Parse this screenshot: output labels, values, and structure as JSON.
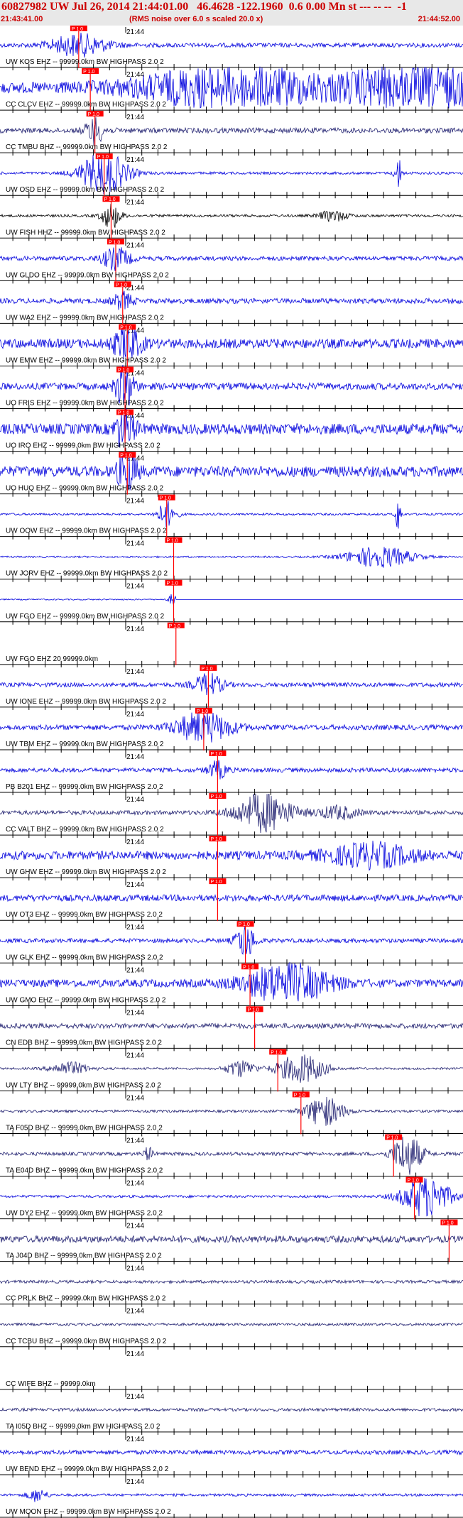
{
  "header": {
    "title": "60827982 UW Jul 26, 2014 21:44:01.00   46.4628 -122.1960  0.6 0.00 Mn st --- -- --  -1",
    "start_time": "21:43:41.00",
    "note": "(RMS noise over 6.0 s scaled 20.0 x)",
    "end_time": "21:44:52.00"
  },
  "tick_time_label": "21:44",
  "pick_label": "P 1.0",
  "colors": {
    "red": "#ff0000",
    "blue": "#0000dd",
    "navy": "#202070",
    "black": "#000000",
    "header_red": "#cc0000"
  },
  "traces": [
    {
      "label": "UW KOS EHZ -- 99999.0km BW  HIGHPASS  2.0  2",
      "color": "blue",
      "pick": 0.17,
      "amp": 0.1,
      "events": [
        [
          0.17,
          0.5,
          0.06
        ]
      ]
    },
    {
      "label": "CC CLCV EHZ -- 99999.0km BW  HIGHPASS  2.0  2",
      "color": "blue",
      "pick": 0.195,
      "amp": 0.25,
      "events": [
        [
          0.5,
          0.9,
          0.2
        ],
        [
          0.9,
          1.0,
          0.15
        ]
      ]
    },
    {
      "label": "CC TMBU BHZ -- 99999.0km BW  HIGHPASS  2.0  2",
      "color": "navy",
      "pick": 0.205,
      "amp": 0.12,
      "events": [
        [
          0.205,
          0.6,
          0.02
        ]
      ]
    },
    {
      "label": "UW OSD EHZ -- 99999.0km BW  HIGHPASS  2.0  2",
      "color": "blue",
      "pick": 0.225,
      "amp": 0.06,
      "events": [
        [
          0.225,
          1.0,
          0.05
        ],
        [
          0.86,
          0.7,
          0.008
        ]
      ]
    },
    {
      "label": "UW FISH HHZ -- 99999.0km BW  HIGHPASS  2.0  2",
      "color": "black",
      "pick": 0.24,
      "amp": 0.06,
      "events": [
        [
          0.24,
          0.6,
          0.02
        ],
        [
          0.72,
          0.25,
          0.03
        ]
      ]
    },
    {
      "label": "UW GLDO EHZ -- 99999.0km BW  HIGHPASS  2.0  2",
      "color": "blue",
      "pick": 0.25,
      "amp": 0.1,
      "events": [
        [
          0.25,
          0.5,
          0.03
        ]
      ]
    },
    {
      "label": "UW WA2 EHZ -- 99999.0km BW  HIGHPASS  2.0  2",
      "color": "blue",
      "pick": 0.265,
      "amp": 0.12,
      "events": [
        [
          0.265,
          0.4,
          0.02
        ]
      ]
    },
    {
      "label": "UW EMW EHZ -- 99999.0km BW  HIGHPASS  2.0  2",
      "color": "blue",
      "pick": 0.275,
      "amp": 0.22,
      "events": [
        [
          0.275,
          0.7,
          0.03
        ]
      ]
    },
    {
      "label": "UO FRIS EHZ -- 99999.0km BW  HIGHPASS  2.0  2",
      "color": "blue",
      "pick": 0.27,
      "amp": 0.16,
      "events": [
        [
          0.27,
          1.0,
          0.02
        ]
      ]
    },
    {
      "label": "UO IRO EHZ -- 99999.0km BW  HIGHPASS  2.0  2",
      "color": "blue",
      "pick": 0.27,
      "amp": 0.25,
      "events": [
        [
          0.27,
          1.0,
          0.02
        ]
      ]
    },
    {
      "label": "UO HUQ EHZ -- 99999.0km BW  HIGHPASS  2.0  2",
      "color": "blue",
      "pick": 0.275,
      "amp": 0.25,
      "events": [
        [
          0.275,
          1.0,
          0.02
        ]
      ]
    },
    {
      "label": "UW OOW EHZ -- 99999.0km BW  HIGHPASS  2.0  2",
      "color": "blue",
      "pick": 0.36,
      "amp": 0.05,
      "events": [
        [
          0.36,
          0.6,
          0.02
        ],
        [
          0.86,
          0.8,
          0.006
        ]
      ]
    },
    {
      "label": "UW JORV EHZ -- 99999.0km BW  HIGHPASS  2.0  2",
      "color": "blue",
      "pick": 0.375,
      "amp": 0.04,
      "events": [
        [
          0.82,
          0.5,
          0.07
        ]
      ]
    },
    {
      "label": "UW FGO EHZ -- 99999.0km BW  HIGHPASS  2.0  2",
      "color": "blue",
      "pick": 0.375,
      "amp": 0.03,
      "events": [
        [
          0.375,
          0.3,
          0.01
        ]
      ],
      "flat_after": 0.38
    },
    {
      "label": "UW FGO EHZ 20 99999.0km",
      "color": "blue",
      "pick": 0.38,
      "amp": 0.0,
      "events": [],
      "blank": true
    },
    {
      "label": "UW IONE EHZ -- 99999.0km BW  HIGHPASS  2.0  2",
      "color": "blue",
      "pick": 0.45,
      "amp": 0.1,
      "events": [
        [
          0.45,
          0.5,
          0.03
        ]
      ]
    },
    {
      "label": "UW TBM EHZ -- 99999.0km BW  HIGHPASS  2.0  2",
      "color": "blue",
      "pick": 0.44,
      "amp": 0.12,
      "events": [
        [
          0.44,
          0.7,
          0.06
        ]
      ]
    },
    {
      "label": "PB B201 EHZ -- 99999.0km BW  HIGHPASS  2.0  2",
      "color": "blue",
      "pick": 0.47,
      "amp": 0.1,
      "events": [
        [
          0.47,
          0.4,
          0.02
        ]
      ]
    },
    {
      "label": "CC VALT BHZ -- 99999.0km BW  HIGHPASS  2.0  2",
      "color": "navy",
      "pick": 0.47,
      "amp": 0.1,
      "events": [
        [
          0.57,
          0.9,
          0.06
        ],
        [
          0.73,
          0.3,
          0.04
        ]
      ]
    },
    {
      "label": "UW GHW EHZ -- 99999.0km BW  HIGHPASS  2.0  2",
      "color": "blue",
      "pick": 0.47,
      "amp": 0.2,
      "events": [
        [
          0.8,
          0.5,
          0.09
        ]
      ]
    },
    {
      "label": "UW OT3 EHZ -- 99999.0km BW  HIGHPASS  2.0  2",
      "color": "blue",
      "pick": 0.47,
      "amp": 0.15,
      "events": []
    },
    {
      "label": "UW GLK EHZ -- 99999.0km BW  HIGHPASS  2.0  2",
      "color": "blue",
      "pick": 0.53,
      "amp": 0.1,
      "events": [
        [
          0.53,
          0.8,
          0.02
        ]
      ]
    },
    {
      "label": "UW GMO EHZ -- 99999.0km BW  HIGHPASS  2.0  2",
      "color": "blue",
      "pick": 0.54,
      "amp": 0.18,
      "events": [
        [
          0.62,
          0.9,
          0.09
        ]
      ]
    },
    {
      "label": "CN EDB BHZ -- 99999.0km BW  HIGHPASS  2.0  2",
      "color": "navy",
      "pick": 0.55,
      "amp": 0.12,
      "events": []
    },
    {
      "label": "UW LTY BHZ -- 99999.0km BW  HIGHPASS  2.0  2",
      "color": "navy",
      "pick": 0.6,
      "amp": 0.05,
      "events": [
        [
          0.15,
          0.3,
          0.04
        ],
        [
          0.52,
          0.4,
          0.03
        ],
        [
          0.65,
          0.7,
          0.05
        ]
      ]
    },
    {
      "label": "TA F05D BHZ -- 99999.0km BW  HIGHPASS  2.0  2",
      "color": "navy",
      "pick": 0.65,
      "amp": 0.06,
      "events": [
        [
          0.7,
          0.7,
          0.04
        ]
      ]
    },
    {
      "label": "TA E04D BHZ -- 99999.0km BW  HIGHPASS  2.0  2",
      "color": "navy",
      "pick": 0.85,
      "amp": 0.08,
      "events": [
        [
          0.32,
          0.3,
          0.01
        ],
        [
          0.88,
          1.0,
          0.03
        ]
      ]
    },
    {
      "label": "UW DY2 EHZ -- 99999.0km BW  HIGHPASS  2.0  2",
      "color": "blue",
      "pick": 0.895,
      "amp": 0.06,
      "events": [
        [
          0.92,
          1.0,
          0.05
        ]
      ]
    },
    {
      "label": "TA J04D BHZ -- 99999.0km BW  HIGHPASS  2.0  2",
      "color": "navy",
      "pick": 0.97,
      "amp": 0.16,
      "events": []
    },
    {
      "label": "CC PRLK BHZ -- 99999.0km BW  HIGHPASS  2.0  2",
      "color": "navy",
      "pick": null,
      "amp": 0.07,
      "events": []
    },
    {
      "label": "CC TCBU BHZ -- 99999.0km BW  HIGHPASS  2.0  2",
      "color": "navy",
      "pick": null,
      "amp": 0.06,
      "events": []
    },
    {
      "label": "CC WIFE BHZ -- 99999.0km",
      "color": "navy",
      "pick": null,
      "amp": 0.0,
      "events": [],
      "blank": true
    },
    {
      "label": "TA I05D BHZ -- 99999.0km BW  HIGHPASS  2.0  2",
      "color": "navy",
      "pick": null,
      "amp": 0.07,
      "events": []
    },
    {
      "label": "UW BEND EHZ -- 99999.0km BW  HIGHPASS  2.0  2",
      "color": "blue",
      "pick": null,
      "amp": 0.1,
      "events": []
    },
    {
      "label": "UW MOON EHZ -- 99999.0km BW  HIGHPASS  2.0  2",
      "color": "blue",
      "pick": null,
      "amp": 0.06,
      "events": [
        [
          0.08,
          0.3,
          0.02
        ]
      ]
    }
  ]
}
